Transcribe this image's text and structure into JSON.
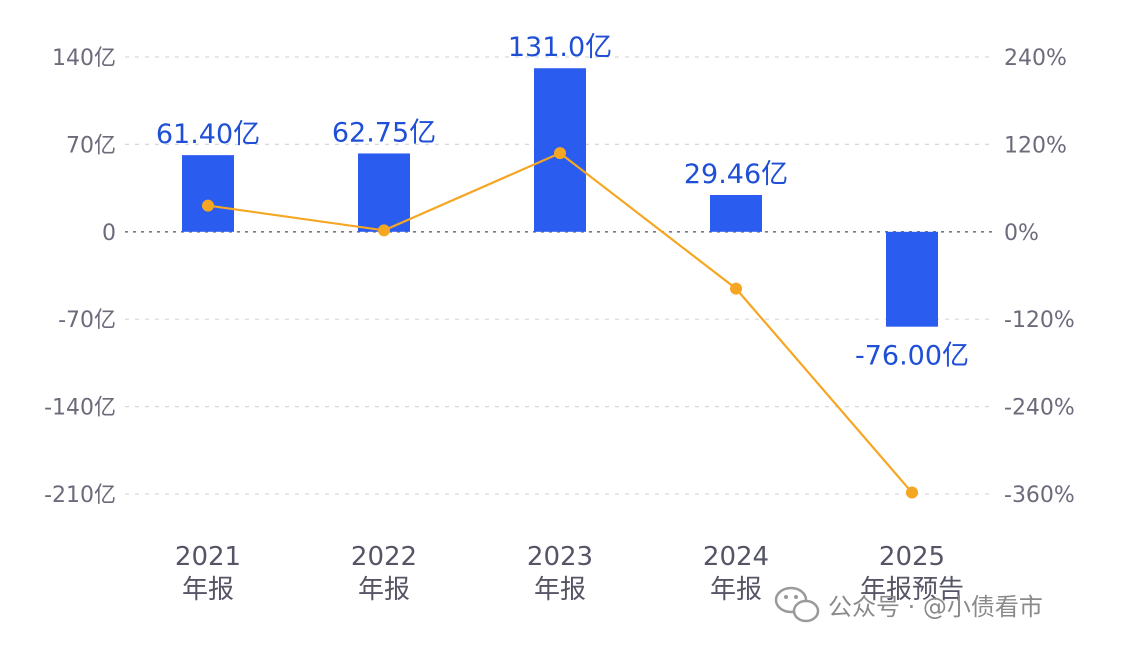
{
  "chart_data": {
    "type": "bar",
    "categories": [
      [
        "2021",
        "年报"
      ],
      [
        "2022",
        "年报"
      ],
      [
        "2023",
        "年报"
      ],
      [
        "2024",
        "年报"
      ],
      [
        "2025",
        "年报预告"
      ]
    ],
    "series": [
      {
        "type": "bar",
        "axis": "left",
        "color": "#2a5cf0",
        "values": [
          61.4,
          62.75,
          131.0,
          29.46,
          -76.0
        ],
        "labels": [
          "61.40亿",
          "62.75亿",
          "131.0亿",
          "29.46亿",
          "-76.00亿"
        ]
      },
      {
        "type": "line",
        "axis": "right",
        "color": "#f5a623",
        "values": [
          36,
          2,
          108,
          -78,
          -358
        ]
      }
    ],
    "left_axis": {
      "min": -210,
      "max": 140,
      "ticks": [
        140,
        70,
        0,
        -70,
        -140,
        -210
      ],
      "tick_labels": [
        "140亿",
        "70亿",
        "0",
        "-70亿",
        "-140亿",
        "-210亿"
      ]
    },
    "right_axis": {
      "min": -360,
      "max": 240,
      "ticks": [
        240,
        120,
        0,
        -120,
        -240,
        -360
      ],
      "tick_labels": [
        "240%",
        "120%",
        "0%",
        "-120%",
        "-240%",
        "-360%"
      ]
    },
    "grid": "dashed-horizontal",
    "watermark": "公众号 · @小债看市"
  }
}
